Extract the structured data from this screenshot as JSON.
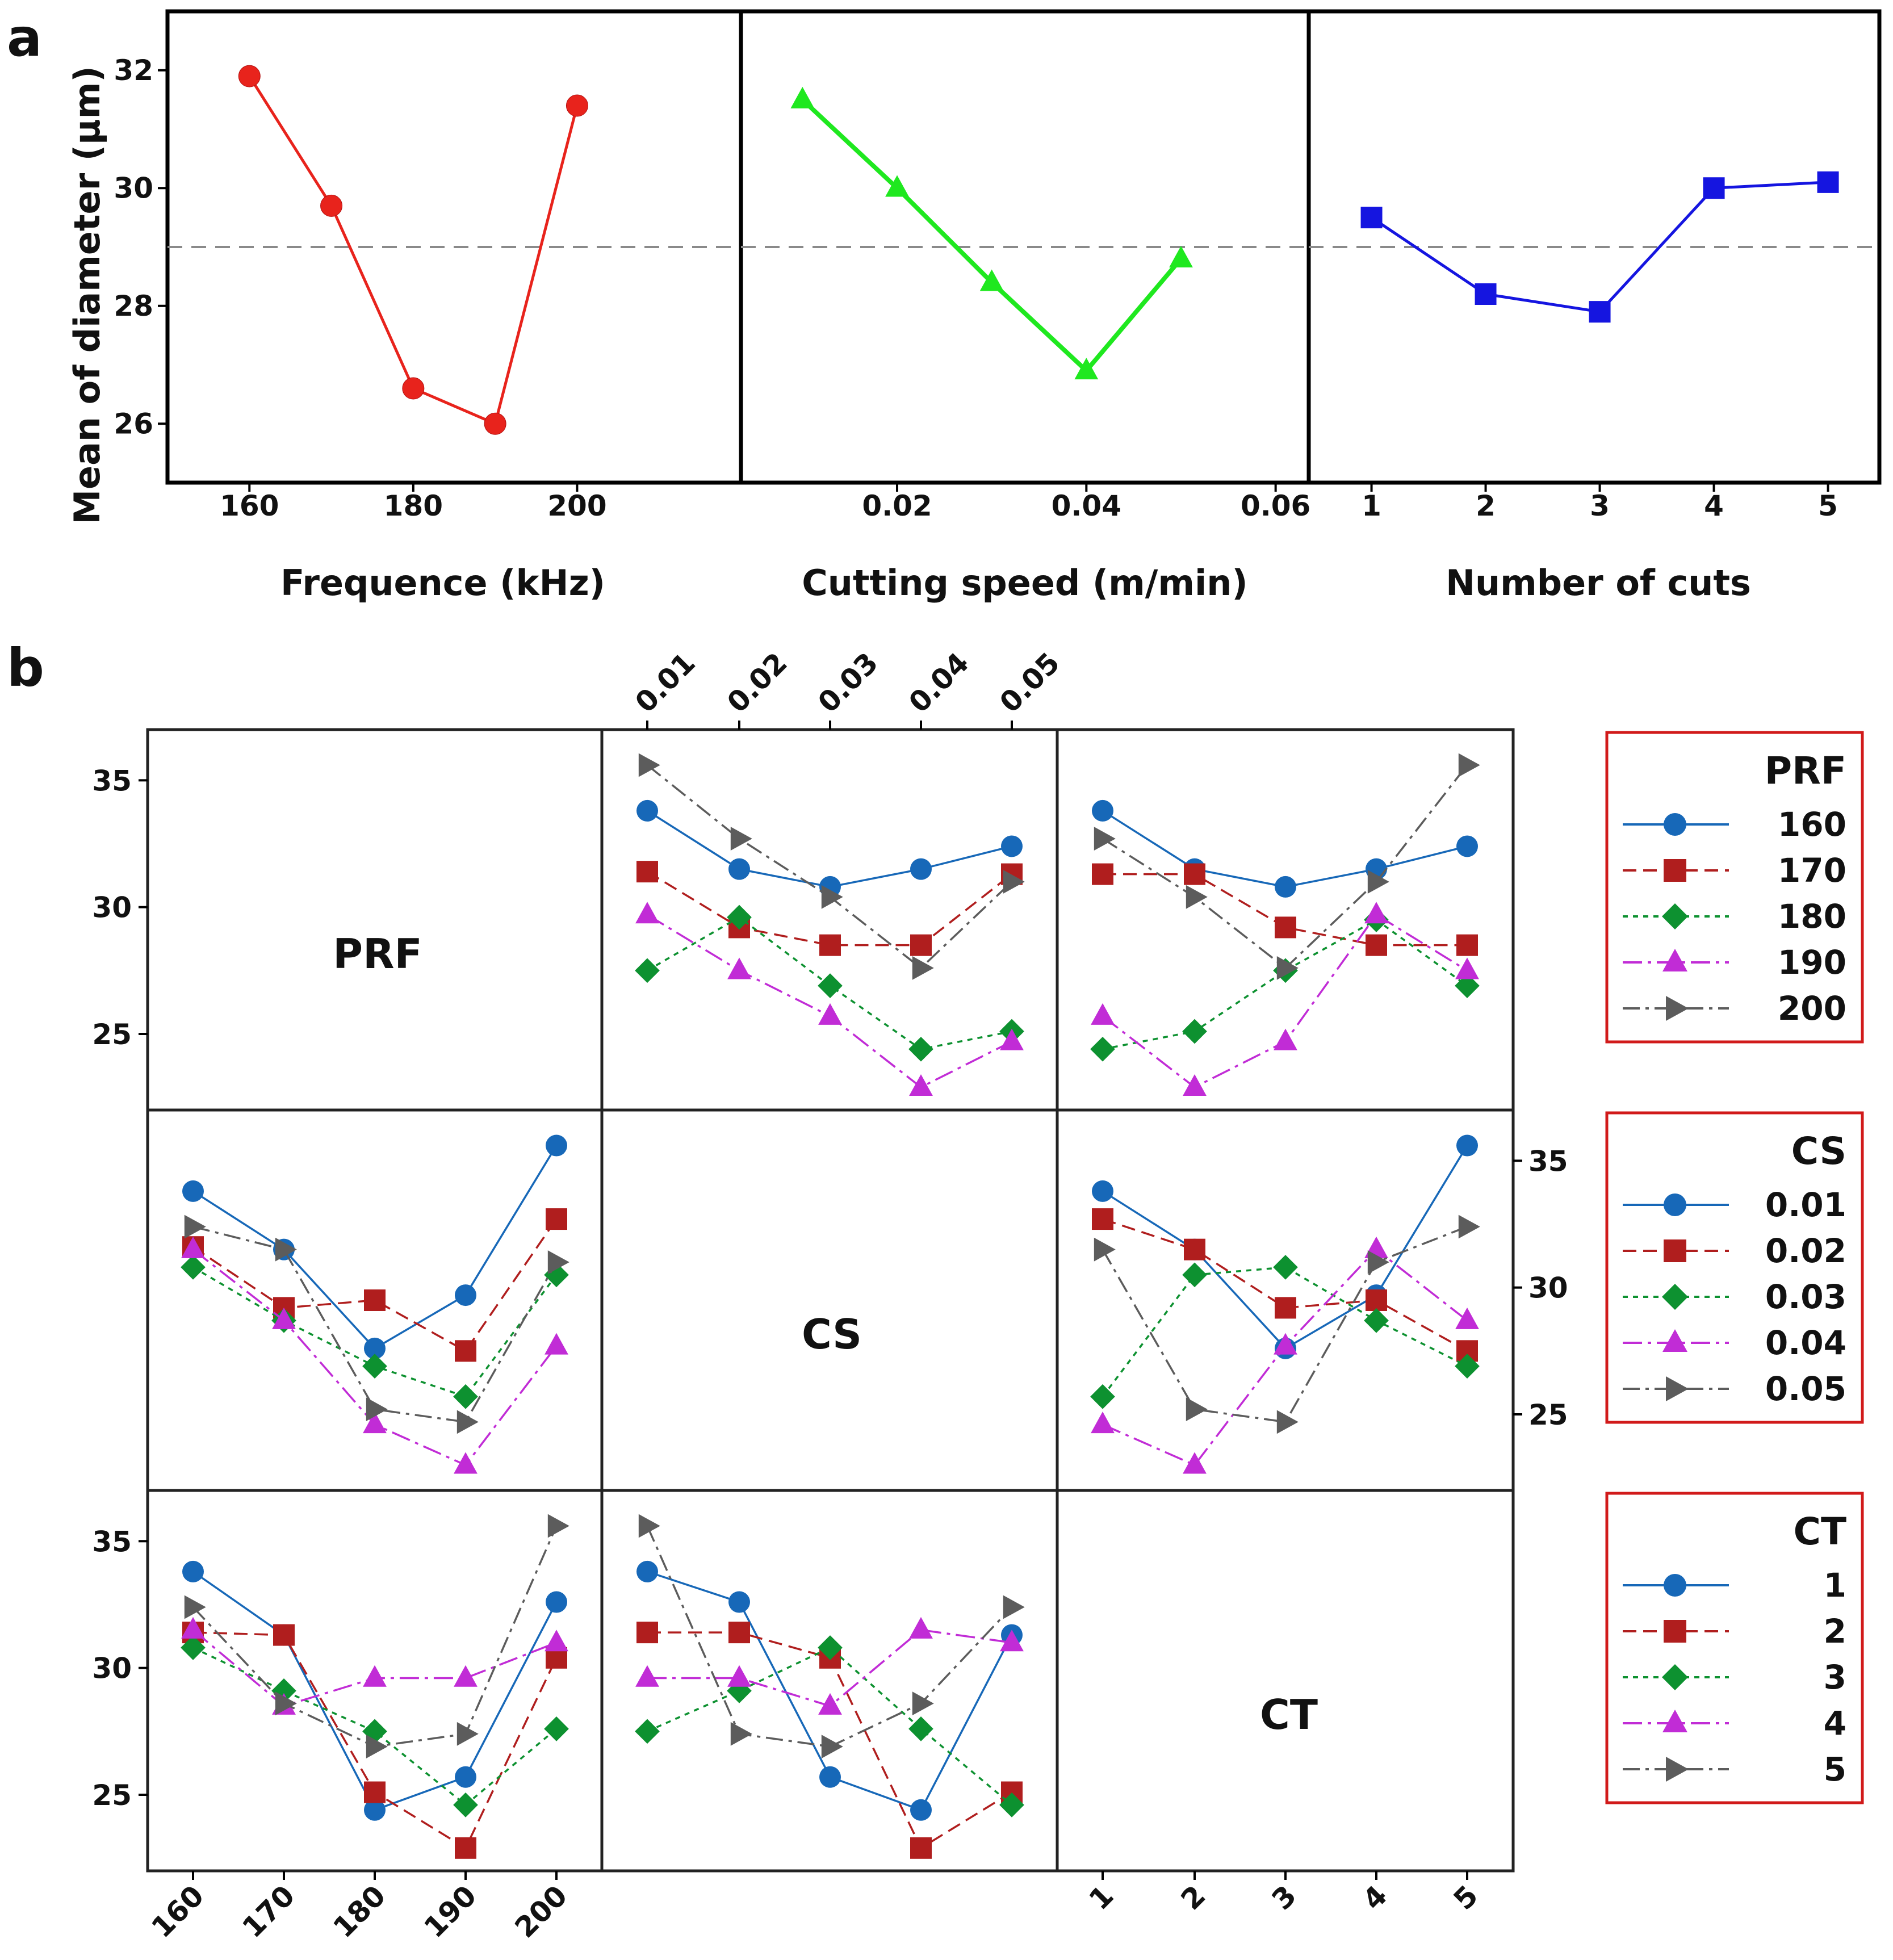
{
  "chart_data": [
    {
      "id": "a",
      "panel_label": "a",
      "type": "line",
      "ylabel": "Mean of diameter (μm)",
      "ylim": [
        25,
        33
      ],
      "yticks": [
        26,
        28,
        30,
        32
      ],
      "reference_line": 29.0,
      "subplots": [
        {
          "xlabel": "Frequence (kHz)",
          "x": [
            160,
            170,
            180,
            190,
            200
          ],
          "y": [
            31.9,
            29.7,
            26.6,
            26.0,
            31.4
          ],
          "xticks": [
            160,
            180,
            200
          ],
          "xlim": [
            150,
            220
          ],
          "color": "#e8231c",
          "marker": "circle"
        },
        {
          "xlabel": "Cutting speed (m/min)",
          "x": [
            0.01,
            0.02,
            0.03,
            0.04,
            0.05
          ],
          "y": [
            31.5,
            30.0,
            28.4,
            26.9,
            28.8
          ],
          "xticks": [
            "0.02",
            "0.04",
            "0.06"
          ],
          "xlim": [
            0.0035,
            0.0635
          ],
          "color": "#1fe81f",
          "marker": "triangle"
        },
        {
          "xlabel": "Number of cuts",
          "x": [
            1,
            2,
            3,
            4,
            5
          ],
          "y": [
            29.5,
            28.2,
            27.9,
            30.0,
            30.1
          ],
          "xticks": [
            1,
            2,
            3,
            4,
            5
          ],
          "xlim": [
            0.45,
            5.45
          ],
          "color": "#1515e0",
          "marker": "square"
        }
      ]
    },
    {
      "id": "b",
      "panel_label": "b",
      "type": "line",
      "matrix_labels": [
        "PRF",
        "CS",
        "CT"
      ],
      "x_levels": {
        "PRF": [
          "160",
          "170",
          "180",
          "190",
          "200"
        ],
        "CS": [
          "0.01",
          "0.02",
          "0.03",
          "0.04",
          "0.05"
        ],
        "CT": [
          "1",
          "2",
          "3",
          "4",
          "5"
        ]
      },
      "yticks": [
        25,
        30,
        35
      ],
      "ylim": [
        22.0,
        37.0
      ],
      "legends": [
        {
          "title": "PRF",
          "items": [
            "160",
            "170",
            "180",
            "190",
            "200"
          ]
        },
        {
          "title": "CS",
          "items": [
            "0.01",
            "0.02",
            "0.03",
            "0.04",
            "0.05"
          ]
        },
        {
          "title": "CT",
          "items": [
            "1",
            "2",
            "3",
            "4",
            "5"
          ]
        }
      ],
      "series_style": [
        {
          "color": "#1768b8",
          "marker": "circle",
          "dash": ""
        },
        {
          "color": "#b01e1e",
          "marker": "square",
          "dash": "24,12"
        },
        {
          "color": "#0d9130",
          "marker": "diamond",
          "dash": "9,9"
        },
        {
          "color": "#c12cd6",
          "marker": "triangle",
          "dash": "34,10,6,10"
        },
        {
          "color": "#5c5c5c",
          "marker": "tri-right",
          "dash": "30,10,6,10"
        }
      ],
      "cells": [
        {
          "row": 0,
          "col": 1,
          "x_factor": "CS",
          "legend": "PRF",
          "series": [
            [
              33.8,
              31.5,
              30.8,
              31.5,
              32.4
            ],
            [
              31.4,
              29.2,
              28.5,
              28.5,
              31.3
            ],
            [
              27.5,
              29.6,
              26.9,
              24.4,
              25.1
            ],
            [
              29.7,
              27.5,
              25.7,
              22.9,
              24.7
            ],
            [
              35.6,
              32.7,
              30.4,
              27.6,
              31.0
            ]
          ]
        },
        {
          "row": 0,
          "col": 2,
          "x_factor": "CT",
          "legend": "PRF",
          "series": [
            [
              33.8,
              31.5,
              30.8,
              31.5,
              32.4
            ],
            [
              31.3,
              31.3,
              29.2,
              28.5,
              28.5
            ],
            [
              24.4,
              25.1,
              27.5,
              29.5,
              26.9
            ],
            [
              25.7,
              22.9,
              24.7,
              29.7,
              27.5
            ],
            [
              32.7,
              30.4,
              27.6,
              31.0,
              35.6
            ]
          ]
        },
        {
          "row": 1,
          "col": 0,
          "x_factor": "PRF",
          "legend": "CS",
          "series": [
            [
              33.8,
              31.5,
              27.6,
              29.7,
              35.6
            ],
            [
              31.6,
              29.2,
              29.5,
              27.5,
              32.7
            ],
            [
              30.8,
              28.7,
              26.9,
              25.7,
              30.5
            ],
            [
              31.5,
              28.7,
              24.6,
              23.0,
              27.7
            ],
            [
              32.4,
              31.5,
              25.2,
              24.7,
              31.0
            ]
          ]
        },
        {
          "row": 1,
          "col": 2,
          "x_factor": "CT",
          "legend": "CS",
          "series": [
            [
              33.8,
              31.5,
              27.6,
              29.7,
              35.6
            ],
            [
              32.7,
              31.5,
              29.2,
              29.5,
              27.5
            ],
            [
              25.7,
              30.5,
              30.8,
              28.7,
              26.9
            ],
            [
              24.6,
              23.0,
              27.7,
              31.5,
              28.7
            ],
            [
              31.5,
              25.2,
              24.7,
              31.0,
              32.4
            ]
          ]
        },
        {
          "row": 2,
          "col": 0,
          "x_factor": "PRF",
          "legend": "CT",
          "series": [
            [
              33.8,
              31.3,
              24.4,
              25.7,
              32.6
            ],
            [
              31.4,
              31.3,
              25.1,
              22.9,
              30.4
            ],
            [
              30.8,
              29.1,
              27.5,
              24.6,
              27.6
            ],
            [
              31.5,
              28.5,
              29.6,
              29.6,
              31.0
            ],
            [
              32.4,
              28.6,
              26.9,
              27.4,
              35.6
            ]
          ]
        },
        {
          "row": 2,
          "col": 1,
          "x_factor": "CS",
          "legend": "CT",
          "series": [
            [
              33.8,
              32.6,
              25.7,
              24.4,
              31.3
            ],
            [
              31.4,
              31.4,
              30.4,
              22.9,
              25.1
            ],
            [
              27.5,
              29.1,
              30.8,
              27.6,
              24.6
            ],
            [
              29.6,
              29.6,
              28.5,
              31.5,
              31.0
            ],
            [
              35.6,
              27.4,
              26.9,
              28.6,
              32.4
            ]
          ]
        }
      ]
    }
  ]
}
